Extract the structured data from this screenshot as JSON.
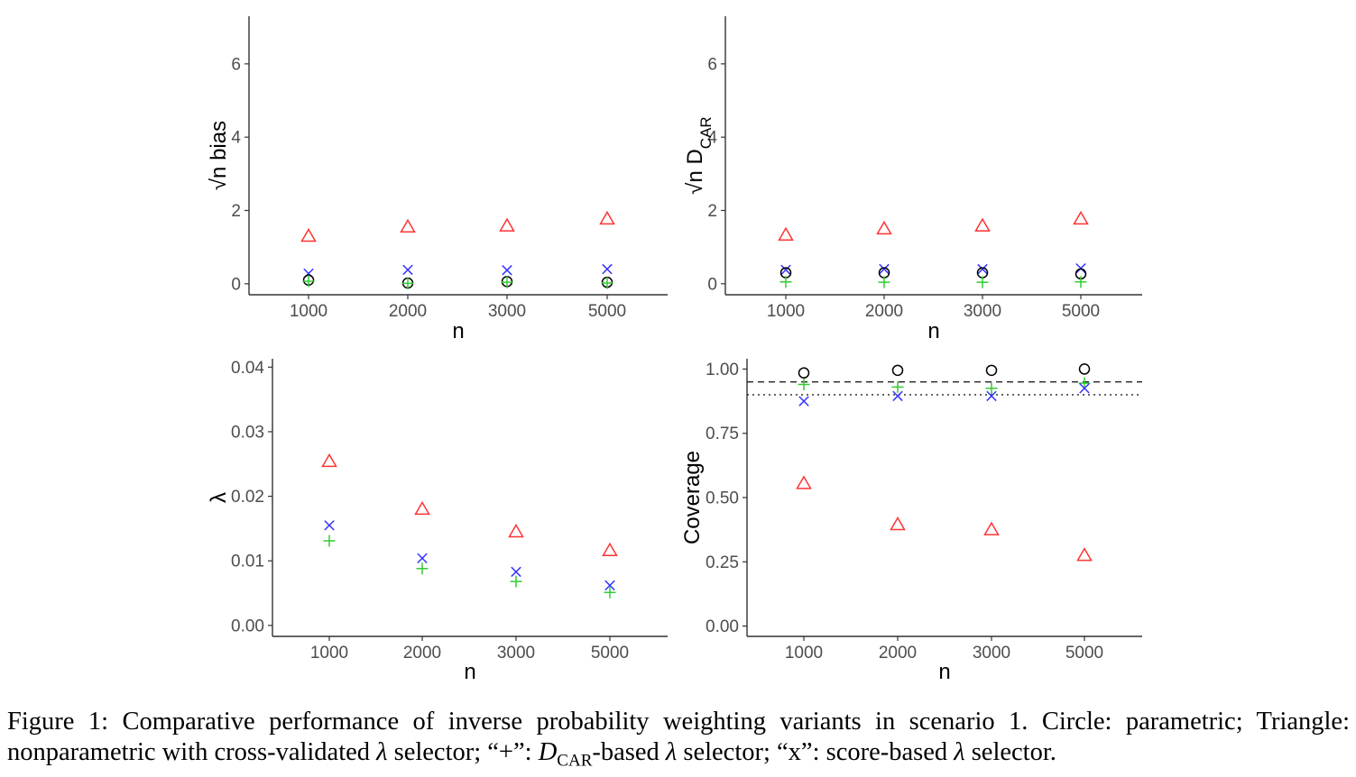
{
  "colors": {
    "parametric": "#000000",
    "cv": "#ff3333",
    "dcar": "#33cc33",
    "score": "#3333ff"
  },
  "marker_meaning": {
    "circle": "parametric",
    "triangle": "nonparametric with cross-validated λ selector",
    "plus": "D_CAR-based λ selector",
    "x": "score-based λ selector"
  },
  "chart_data": [
    {
      "type": "scatter",
      "panel": "top-left",
      "xlabel": "n",
      "ylabel": "√n bias",
      "categories": [
        "1000",
        "2000",
        "3000",
        "5000"
      ],
      "ylim": [
        -0.3,
        7.3
      ],
      "yticks": [
        0,
        2,
        4,
        6
      ],
      "ytick_labels": [
        "0",
        "2",
        "4",
        "6"
      ],
      "series": [
        {
          "marker": "triangle",
          "color": "cv",
          "values": [
            1.3,
            1.55,
            1.58,
            1.77
          ]
        },
        {
          "marker": "x",
          "color": "score",
          "values": [
            0.28,
            0.38,
            0.37,
            0.4
          ]
        },
        {
          "marker": "circle",
          "color": "parametric",
          "values": [
            0.1,
            0.02,
            0.06,
            0.04
          ]
        },
        {
          "marker": "plus",
          "color": "dcar",
          "values": [
            0.07,
            0.01,
            0.04,
            0.02
          ]
        }
      ]
    },
    {
      "type": "scatter",
      "panel": "top-right",
      "xlabel": "n",
      "ylabel": "√n D",
      "ylabel_sub": "CAR",
      "categories": [
        "1000",
        "2000",
        "3000",
        "5000"
      ],
      "ylim": [
        -0.3,
        7.3
      ],
      "yticks": [
        0,
        2,
        4,
        6
      ],
      "ytick_labels": [
        "0",
        "2",
        "4",
        "6"
      ],
      "series": [
        {
          "marker": "triangle",
          "color": "cv",
          "values": [
            1.33,
            1.5,
            1.58,
            1.77
          ]
        },
        {
          "marker": "x",
          "color": "score",
          "values": [
            0.38,
            0.4,
            0.4,
            0.42
          ]
        },
        {
          "marker": "circle",
          "color": "parametric",
          "values": [
            0.3,
            0.3,
            0.3,
            0.27
          ]
        },
        {
          "marker": "plus",
          "color": "dcar",
          "values": [
            0.05,
            0.04,
            0.04,
            0.05
          ]
        }
      ]
    },
    {
      "type": "scatter",
      "panel": "bottom-left",
      "xlabel": "n",
      "ylabel": "λ",
      "categories": [
        "1000",
        "2000",
        "3000",
        "5000"
      ],
      "ylim": [
        -0.0017,
        0.0413
      ],
      "yticks": [
        0,
        0.01,
        0.02,
        0.03,
        0.04
      ],
      "ytick_labels": [
        "0.00",
        "0.01",
        "0.02",
        "0.03",
        "0.04"
      ],
      "series": [
        {
          "marker": "triangle",
          "color": "cv",
          "values": [
            0.0254,
            0.018,
            0.0145,
            0.0116
          ]
        },
        {
          "marker": "x",
          "color": "score",
          "values": [
            0.0155,
            0.0104,
            0.0083,
            0.0062
          ]
        },
        {
          "marker": "plus",
          "color": "dcar",
          "values": [
            0.0131,
            0.0088,
            0.0068,
            0.0051
          ]
        }
      ]
    },
    {
      "type": "scatter",
      "panel": "bottom-right",
      "xlabel": "n",
      "ylabel": "Coverage",
      "categories": [
        "1000",
        "2000",
        "3000",
        "5000"
      ],
      "ylim": [
        -0.04,
        1.04
      ],
      "yticks": [
        0,
        0.25,
        0.5,
        0.75,
        1.0
      ],
      "ytick_labels": [
        "0.00",
        "0.25",
        "0.50",
        "0.75",
        "1.00"
      ],
      "reference_lines": [
        {
          "y": 0.95,
          "style": "dashed"
        },
        {
          "y": 0.9,
          "style": "dotted"
        }
      ],
      "series": [
        {
          "marker": "circle",
          "color": "parametric",
          "values": [
            0.985,
            0.995,
            0.995,
            1.0
          ]
        },
        {
          "marker": "plus",
          "color": "dcar",
          "values": [
            0.94,
            0.93,
            0.925,
            0.945
          ]
        },
        {
          "marker": "x",
          "color": "score",
          "values": [
            0.875,
            0.895,
            0.895,
            0.925
          ]
        },
        {
          "marker": "triangle",
          "color": "cv",
          "values": [
            0.555,
            0.395,
            0.375,
            0.275
          ]
        }
      ]
    }
  ],
  "caption": {
    "label": "Figure 1:",
    "text_1": " Comparative performance of inverse probability weighting variants in scenario 1. Circle: parametric; Triangle: nonparametric with cross-validated ",
    "lambda": "λ",
    "text_2": " selector; “+”: ",
    "d": "D",
    "d_sub": "CAR",
    "text_3": "-based ",
    "text_4": " selector; “x”: score-based ",
    "text_5": " selector."
  }
}
